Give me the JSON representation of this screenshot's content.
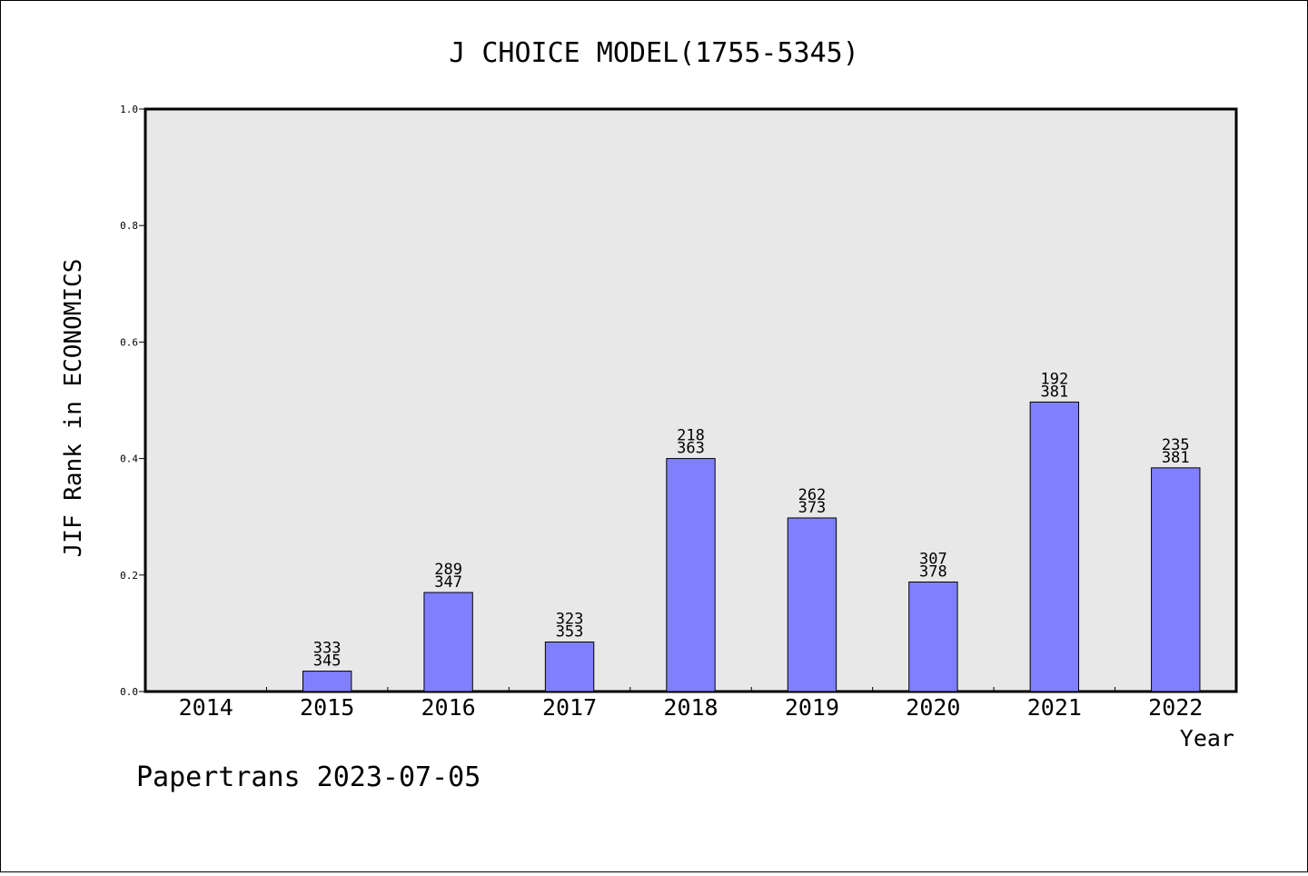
{
  "chart_data": {
    "type": "bar",
    "title": "J CHOICE MODEL(1755-5345)",
    "xlabel": "Year",
    "ylabel": "JIF Rank in ECONOMICS",
    "ylim": [
      0,
      1.0
    ],
    "yticks": [
      "0.0",
      "0.2",
      "0.4",
      "0.6",
      "0.8",
      "1.0"
    ],
    "categories": [
      "2014",
      "2015",
      "2016",
      "2017",
      "2018",
      "2019",
      "2020",
      "2021",
      "2022"
    ],
    "values": [
      0,
      0.035,
      0.17,
      0.085,
      0.4,
      0.298,
      0.188,
      0.497,
      0.384
    ],
    "rank_labels": [
      null,
      {
        "rank": "333",
        "total": "345"
      },
      {
        "rank": "289",
        "total": "347"
      },
      {
        "rank": "323",
        "total": "353"
      },
      {
        "rank": "218",
        "total": "363"
      },
      {
        "rank": "262",
        "total": "373"
      },
      {
        "rank": "307",
        "total": "378"
      },
      {
        "rank": "192",
        "total": "381"
      },
      {
        "rank": "235",
        "total": "381"
      }
    ],
    "bar_color": "#8080ff",
    "plot_background": "#e8e8e8",
    "grid": false
  },
  "footer": "Papertrans 2023-07-05"
}
